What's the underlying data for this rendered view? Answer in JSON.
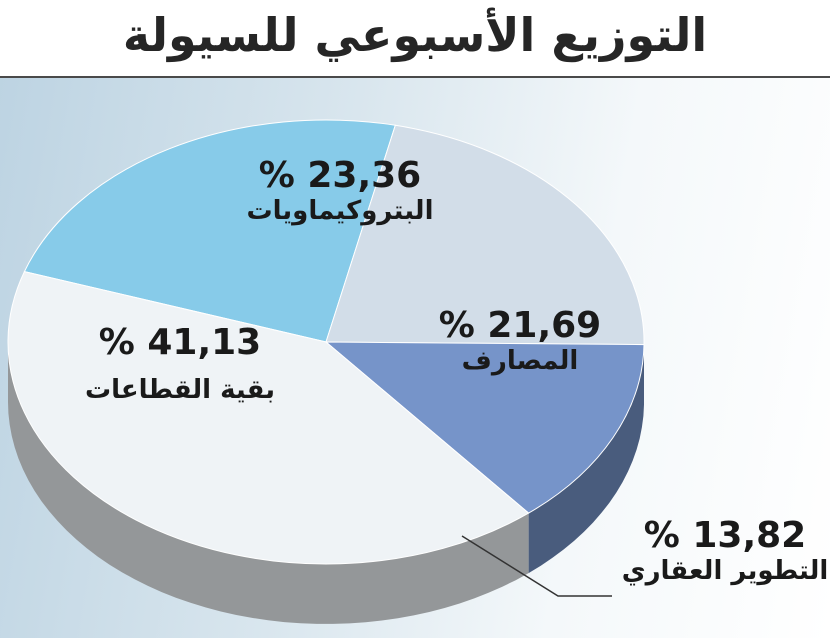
{
  "header": {
    "title": "التوزيع الأسبوعي للسيولة"
  },
  "chart_data": {
    "type": "pie",
    "title": "التوزيع الأسبوعي للسيولة",
    "slices": [
      {
        "name": "البتروكيماويات",
        "value": 23.36,
        "value_label": "% 23,36",
        "color": "#87cbe9"
      },
      {
        "name": "المصارف",
        "value": 21.69,
        "value_label": "% 21,69",
        "color": "#d2dde8"
      },
      {
        "name": "التطوير العقاري",
        "value": 13.82,
        "value_label": "% 13,82",
        "color": "#7694c9"
      },
      {
        "name": "بقية القطاعات",
        "value": 41.13,
        "value_label": "% 41,13",
        "color": "#eff3f6"
      }
    ],
    "legend": "none"
  }
}
